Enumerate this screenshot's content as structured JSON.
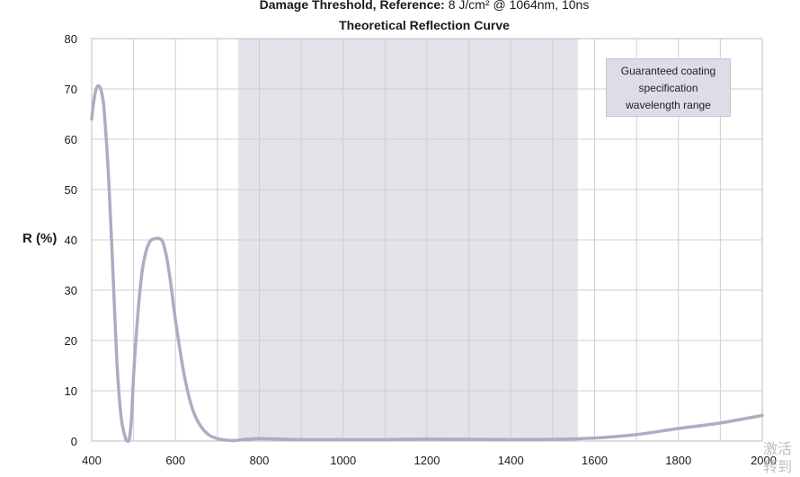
{
  "header": {
    "damage_label": "Damage Threshold, Reference:",
    "damage_value": " 8 J/cm² @ 1064nm, 10ns",
    "title": "Theoretical Reflection Curve"
  },
  "legend_note": {
    "line1": "Guaranteed coating",
    "line2": "specification",
    "line3": "wavelength range"
  },
  "watermark": {
    "line1": "激活",
    "line2": "转到"
  },
  "colors": {
    "curve": "#a9aec2",
    "band": "#e3e4ea",
    "grid": "#cfcfcf"
  },
  "chart_data": {
    "type": "line",
    "title": "Theoretical Reflection Curve",
    "xlabel": "",
    "ylabel": "R (%)",
    "xlim": [
      400,
      2000
    ],
    "ylim": [
      0,
      80
    ],
    "xticks": [
      400,
      600,
      800,
      1000,
      1200,
      1400,
      1600,
      1800,
      2000
    ],
    "yticks": [
      0,
      10,
      20,
      30,
      40,
      50,
      60,
      70,
      80
    ],
    "grid": true,
    "highlight_range": [
      750,
      1560
    ],
    "series": [
      {
        "x": [
          400,
          405,
          410,
          415,
          420,
          425,
          430,
          440,
          450,
          460,
          470,
          480,
          485,
          490,
          495,
          500,
          510,
          520,
          530,
          540,
          550,
          560,
          570,
          580,
          590,
          600,
          620,
          640,
          660,
          680,
          700,
          720,
          740,
          760,
          780,
          800,
          850,
          900,
          1000,
          1100,
          1200,
          1300,
          1400,
          1500,
          1600,
          1700,
          1800,
          1900,
          2000
        ],
        "values": [
          64,
          67.5,
          69.8,
          70.6,
          70.3,
          68.8,
          65.5,
          53,
          35,
          16,
          5,
          0.8,
          0,
          0.5,
          4.5,
          13,
          25,
          33.5,
          37.8,
          39.8,
          40.2,
          40.3,
          39.5,
          36,
          30.5,
          24,
          13.5,
          6.5,
          3,
          1.2,
          0.5,
          0.2,
          0.1,
          0.3,
          0.4,
          0.5,
          0.4,
          0.3,
          0.3,
          0.3,
          0.4,
          0.35,
          0.3,
          0.35,
          0.6,
          1.3,
          2.5,
          3.6,
          5.1
        ]
      }
    ]
  }
}
